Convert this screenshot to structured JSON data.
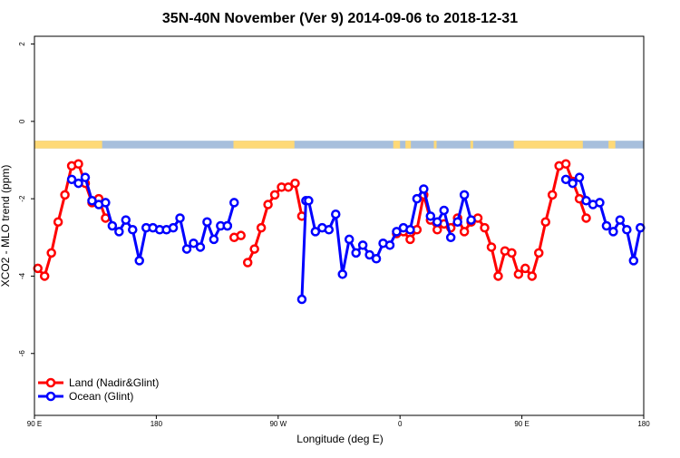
{
  "chart_data": {
    "type": "line",
    "title": "35N-40N November (Ver 9)   2014-09-06 to 2018-12-31",
    "xlabel": "Longitude (deg E)",
    "ylabel": "XCO2 - MLO trend (ppm)",
    "xlim": [
      90,
      540
    ],
    "ylim": [
      -7.6,
      2.2
    ],
    "x_ticks": [
      {
        "value": 90,
        "label": "90 E"
      },
      {
        "value": 180,
        "label": "180"
      },
      {
        "value": 270,
        "label": "90 W"
      },
      {
        "value": 360,
        "label": "0"
      },
      {
        "value": 450,
        "label": "90 E"
      },
      {
        "value": 540,
        "label": "180"
      }
    ],
    "y_ticks": [
      {
        "value": 2,
        "label": "2"
      },
      {
        "value": 0,
        "label": "0"
      },
      {
        "value": -2,
        "label": "-2"
      },
      {
        "value": -4,
        "label": "-4"
      },
      {
        "value": -6,
        "label": "-6"
      }
    ],
    "surface_strip": {
      "y_range": [
        -0.7,
        -0.5
      ],
      "ocean_color": "#a7bfdc",
      "land_color": "#fed977",
      "land_segments": [
        [
          90,
          140
        ],
        [
          237,
          282
        ],
        [
          355,
          360
        ],
        [
          364,
          368
        ],
        [
          385,
          387
        ],
        [
          412,
          414
        ],
        [
          444,
          495
        ],
        [
          514,
          519
        ]
      ]
    },
    "legend_position": "bottom-left",
    "series": [
      {
        "name": "Land (Nadir&Glint)",
        "color": "#ff0000",
        "segments": [
          {
            "x": [
              92.5,
              97.5,
              102.5,
              107.5,
              112.5,
              117.5,
              122.5,
              127.5,
              132.5,
              137.5,
              142.5
            ],
            "y": [
              -3.8,
              -4.0,
              -3.4,
              -2.6,
              -1.9,
              -1.15,
              -1.1,
              -1.6,
              -2.1,
              -2.0,
              -2.5
            ]
          },
          {
            "x": [
              237.5,
              242.5
            ],
            "y": [
              -3.0,
              -2.95
            ]
          },
          {
            "x": [
              247.5,
              252.5,
              257.5,
              262.5,
              267.5,
              272.5,
              277.5,
              282.5,
              287.5
            ],
            "y": [
              -3.65,
              -3.3,
              -2.75,
              -2.15,
              -1.9,
              -1.7,
              -1.7,
              -1.6,
              -2.45
            ]
          },
          {
            "x": [
              357.5,
              362.5,
              367.5,
              372.5,
              377.5,
              382.5,
              387.5,
              392.5,
              397.5,
              402.5,
              407.5,
              412.5,
              417.5,
              422.5,
              427.5,
              432.5,
              437.5,
              442.5,
              447.5,
              452.5,
              457.5,
              462.5,
              467.5,
              472.5,
              477.5,
              482.5,
              487.5,
              492.5,
              497.5,
              502.5
            ],
            "y": [
              -2.9,
              -2.85,
              -3.05,
              -2.8,
              -1.9,
              -2.55,
              -2.8,
              -2.65,
              -2.75,
              -2.5,
              -2.85,
              -2.6,
              -2.5,
              -2.75,
              -3.25,
              -4.0,
              -3.35,
              -3.4,
              -3.95,
              -3.8,
              -4.0,
              -3.4,
              -2.6,
              -1.9,
              -1.15,
              -1.1,
              -1.55,
              -2.0,
              -2.5,
              null
            ]
          }
        ]
      },
      {
        "name": "Ocean (Glint)",
        "color": "#0000ff",
        "segments": [
          {
            "x": [
              117.5,
              122.5,
              127.5,
              132.5,
              137.5,
              142.5,
              147.5,
              152.5,
              157.5,
              162.5,
              167.5,
              172.5,
              177.5,
              182.5,
              187.5,
              192.5,
              197.5,
              202.5,
              207.5,
              212.5,
              217.5,
              222.5,
              227.5,
              232.5
            ],
            "y": [
              -1.5,
              -1.6,
              -1.45,
              -2.05,
              -2.15,
              -2.1,
              -2.7,
              -2.85,
              -2.55,
              -2.8,
              -3.6,
              -2.75,
              -2.75,
              -2.8,
              -2.8,
              -2.75,
              -2.5,
              -3.3,
              -3.15,
              -3.25,
              -2.6,
              -3.05,
              -2.7,
              -2.7
            ]
          },
          {
            "x": [
              232.5,
              237.5
            ],
            "y": [
              -2.7,
              -2.1
            ]
          },
          {
            "x": [
              287.5,
              290.5,
              292.5,
              297.5,
              302.5,
              307.5,
              312.5,
              317.5,
              322.5,
              327.5,
              332.5,
              337.5,
              342.5,
              347.5,
              352.5,
              357.5,
              362.5,
              367.5,
              372.5,
              377.5,
              382.5,
              387.5,
              392.5,
              397.5
            ],
            "y": [
              -4.6,
              -2.05,
              -2.05,
              -2.85,
              -2.75,
              -2.8,
              -2.4,
              -3.95,
              -3.05,
              -3.4,
              -3.2,
              -3.45,
              -3.55,
              -3.15,
              -3.2,
              -2.85,
              -2.75,
              -2.8,
              -2.0,
              -1.75,
              -2.45,
              -2.6,
              -2.3,
              -3.0
            ]
          },
          {
            "x": [
              402.5,
              407.5,
              412.5
            ],
            "y": [
              -2.6,
              -1.9,
              -2.55
            ]
          },
          {
            "x": [
              482.5,
              487.5,
              492.5,
              497.5,
              502.5,
              507.5,
              512.5,
              517.5,
              522.5,
              527.5,
              532.5,
              537.5,
              542.5
            ],
            "y": [
              -1.5,
              -1.6,
              -1.45,
              -2.05,
              -2.15,
              -2.1,
              -2.7,
              -2.85,
              -2.55,
              -2.8,
              -3.6,
              -2.75,
              -2.75
            ]
          }
        ]
      }
    ]
  }
}
